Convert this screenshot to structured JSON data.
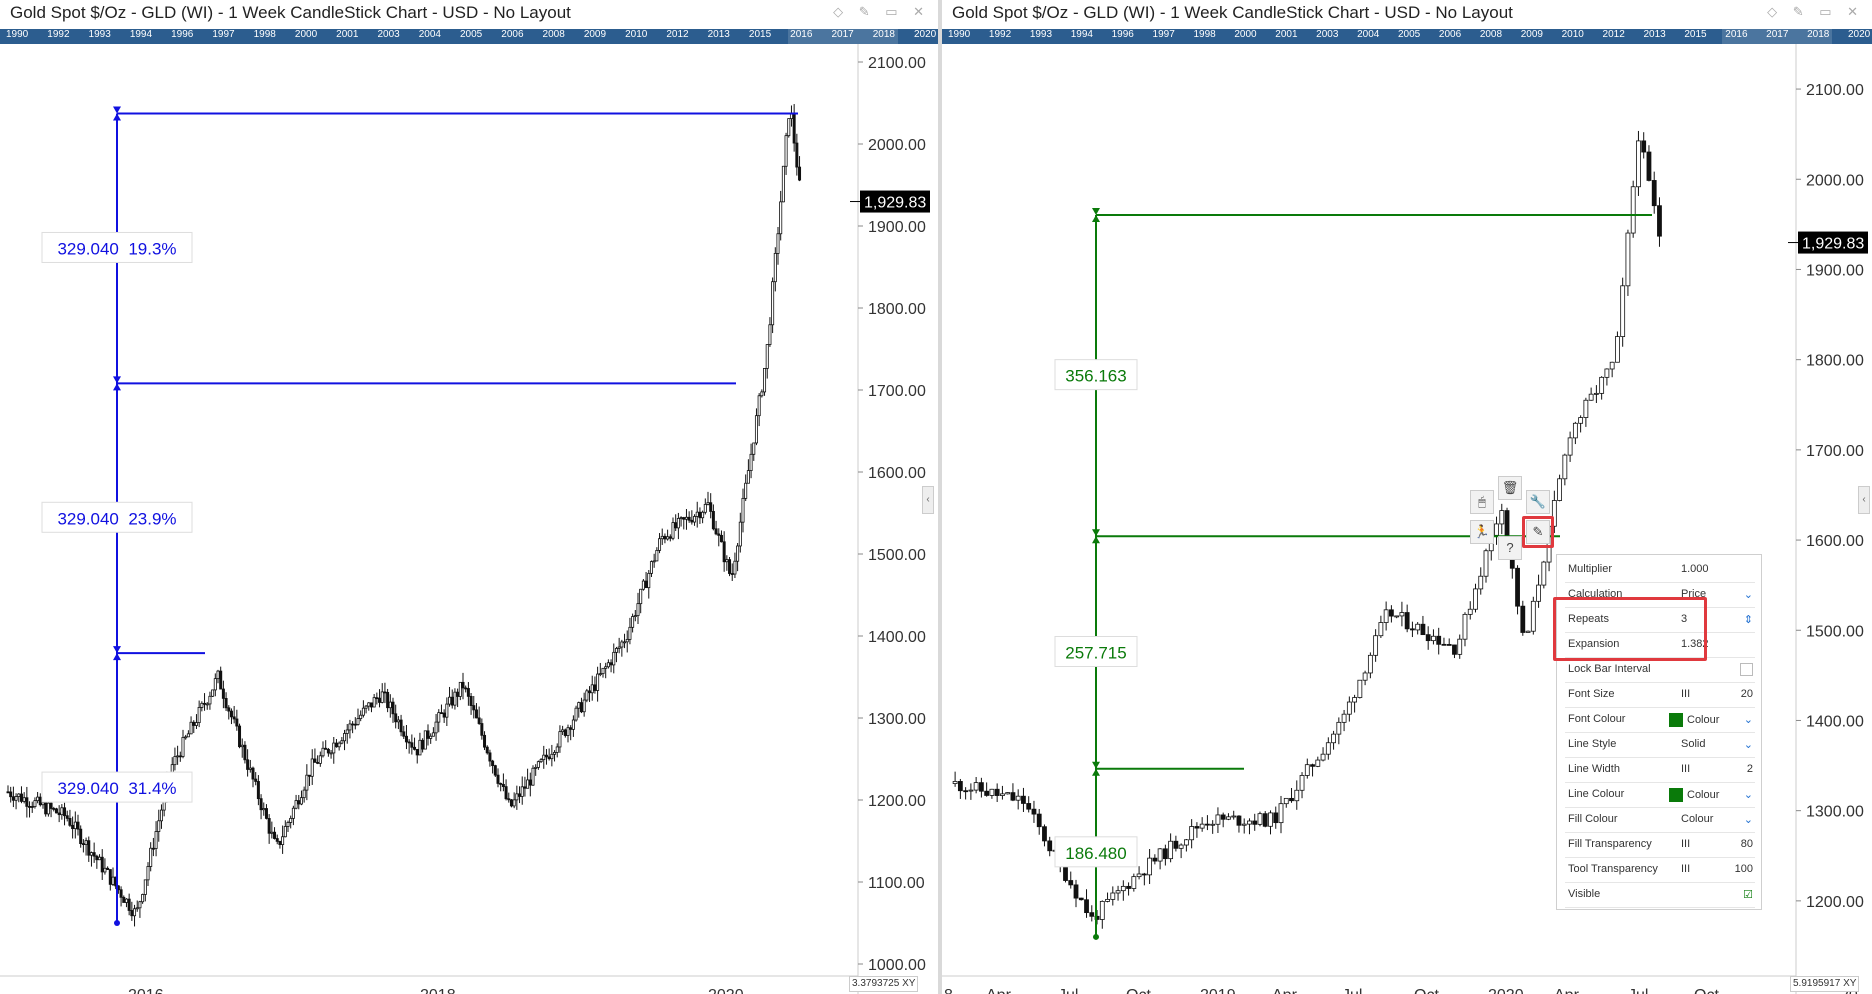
{
  "panels": [
    {
      "title": "Gold Spot $/Oz - GLD (WI) - 1 Week CandleStick Chart - USD - No Layout",
      "timeline_years": [
        "1990",
        "1992",
        "1993",
        "1994",
        "1996",
        "1997",
        "1998",
        "2000",
        "2001",
        "2003",
        "2004",
        "2005",
        "2006",
        "2008",
        "2009",
        "2010",
        "2012",
        "2013",
        "2015",
        "2016",
        "2017",
        "2018",
        "2020"
      ],
      "price_label": "1,929.83",
      "corner_value": "3.3793725",
      "corner_icons": "XY",
      "retracement_labels": [
        "329.040  19.3%",
        "329.040  23.9%",
        "329.040  31.4%"
      ]
    },
    {
      "title": "Gold Spot $/Oz - GLD (WI) - 1 Week CandleStick Chart - USD - No Layout",
      "timeline_years": [
        "1990",
        "1992",
        "1993",
        "1994",
        "1996",
        "1997",
        "1998",
        "2000",
        "2001",
        "2003",
        "2004",
        "2005",
        "2006",
        "2008",
        "2009",
        "2010",
        "2012",
        "2013",
        "2015",
        "2016",
        "2017",
        "2018",
        "2020"
      ],
      "price_label": "1,929.83",
      "corner_value": "5.9195917",
      "corner_icons": "XY",
      "retracement_labels": [
        "356.163",
        "257.715",
        "186.480"
      ]
    }
  ],
  "properties": {
    "rows": [
      {
        "label": "Multiplier",
        "value": "1.000",
        "extra": ""
      },
      {
        "label": "Calculation",
        "value": "Price",
        "extra": "chevron-down"
      },
      {
        "label": "Repeats",
        "value": "3",
        "extra": "spinner"
      },
      {
        "label": "Expansion",
        "value": "1.382",
        "extra": ""
      },
      {
        "label": "Lock Bar Interval",
        "value": "",
        "extra": "checkbox-off"
      },
      {
        "label": "Font Size",
        "value": "III",
        "extra": "20"
      },
      {
        "label": "Font Colour",
        "value": "Colour",
        "extra": "chevron-down"
      },
      {
        "label": "Line Style",
        "value": "Solid",
        "extra": "chevron-down"
      },
      {
        "label": "Line Width",
        "value": "III",
        "extra": "2"
      },
      {
        "label": "Line Colour",
        "value": "Colour",
        "extra": "chevron-down"
      },
      {
        "label": "Fill Colour",
        "value": "Colour",
        "extra": "chevron-down"
      },
      {
        "label": "Fill Transparency",
        "value": "III",
        "extra": "80"
      },
      {
        "label": "Tool Transparency",
        "value": "III",
        "extra": "100"
      },
      {
        "label": "Visible",
        "value": "",
        "extra": "checkbox-on"
      }
    ]
  },
  "colors": {
    "left_tool": "#1010e0",
    "right_tool": "#0a7a0a",
    "candle": "#111111",
    "highlight": "#e0393e",
    "timeline": "#2c5d8f"
  },
  "chart_data": [
    {
      "type": "candlestick",
      "title": "Gold Spot $/Oz - GLD (WI) - 1 Week CandleStick Chart - USD - No Layout",
      "x": [
        "2015-01",
        "2015-06",
        "2015-12",
        "2016-03",
        "2016-07",
        "2016-12",
        "2017-03",
        "2017-09",
        "2017-12",
        "2018-04",
        "2018-08",
        "2019-01",
        "2019-06",
        "2019-09",
        "2020-01",
        "2020-03",
        "2020-06",
        "2020-08",
        "2020-09"
      ],
      "close": [
        1210,
        1180,
        1060,
        1240,
        1350,
        1140,
        1240,
        1330,
        1260,
        1340,
        1190,
        1290,
        1400,
        1520,
        1560,
        1470,
        1740,
        2050,
        1930
      ],
      "x_tick_labels": [
        "2016",
        "2018",
        "2020"
      ],
      "y_tick_labels": [
        "1000.00",
        "1100.00",
        "1200.00",
        "1300.00",
        "1400.00",
        "1500.00",
        "1600.00",
        "1700.00",
        "1800.00",
        "1900.00",
        "2000.00",
        "2100.00"
      ],
      "ylim": [
        1000,
        2100
      ],
      "last_price": "1,929.83",
      "annotations": [
        {
          "tool": "retracement",
          "low": 1050,
          "levels": [
            1379.04,
            1708.08,
            2037.12
          ],
          "labels": [
            "329.040  19.3%",
            "329.040  23.9%",
            "329.040  31.4%"
          ]
        }
      ]
    },
    {
      "type": "candlestick",
      "title": "Gold Spot $/Oz - GLD (WI) - 1 Week CandleStick Chart - USD - No Layout",
      "x": [
        "2018-02",
        "2018-05",
        "2018-08",
        "2018-10",
        "2019-01",
        "2019-04",
        "2019-07",
        "2019-09",
        "2019-12",
        "2020-02",
        "2020-03",
        "2020-05",
        "2020-07",
        "2020-08",
        "2020-09"
      ],
      "close": [
        1330,
        1310,
        1180,
        1230,
        1290,
        1290,
        1400,
        1520,
        1480,
        1640,
        1480,
        1720,
        1800,
        2050,
        1930
      ],
      "x_tick_labels": [
        "8",
        "Apr",
        "Jul",
        "Oct",
        "2019",
        "Apr",
        "Jul",
        "Oct",
        "2020",
        "Apr",
        "Jul",
        "Oct",
        "20"
      ],
      "y_tick_labels": [
        "1200.00",
        "1300.00",
        "1400.00",
        "1500.00",
        "1600.00",
        "1700.00",
        "1800.00",
        "1900.00",
        "2000.00",
        "2100.00"
      ],
      "ylim": [
        1130,
        2130
      ],
      "last_price": "1,929.83",
      "annotations": [
        {
          "tool": "expansion",
          "low": 1160,
          "levels": [
            1346.48,
            1604.2,
            1960.36
          ],
          "labels": [
            "186.480",
            "257.715",
            "356.163"
          ]
        }
      ]
    }
  ]
}
